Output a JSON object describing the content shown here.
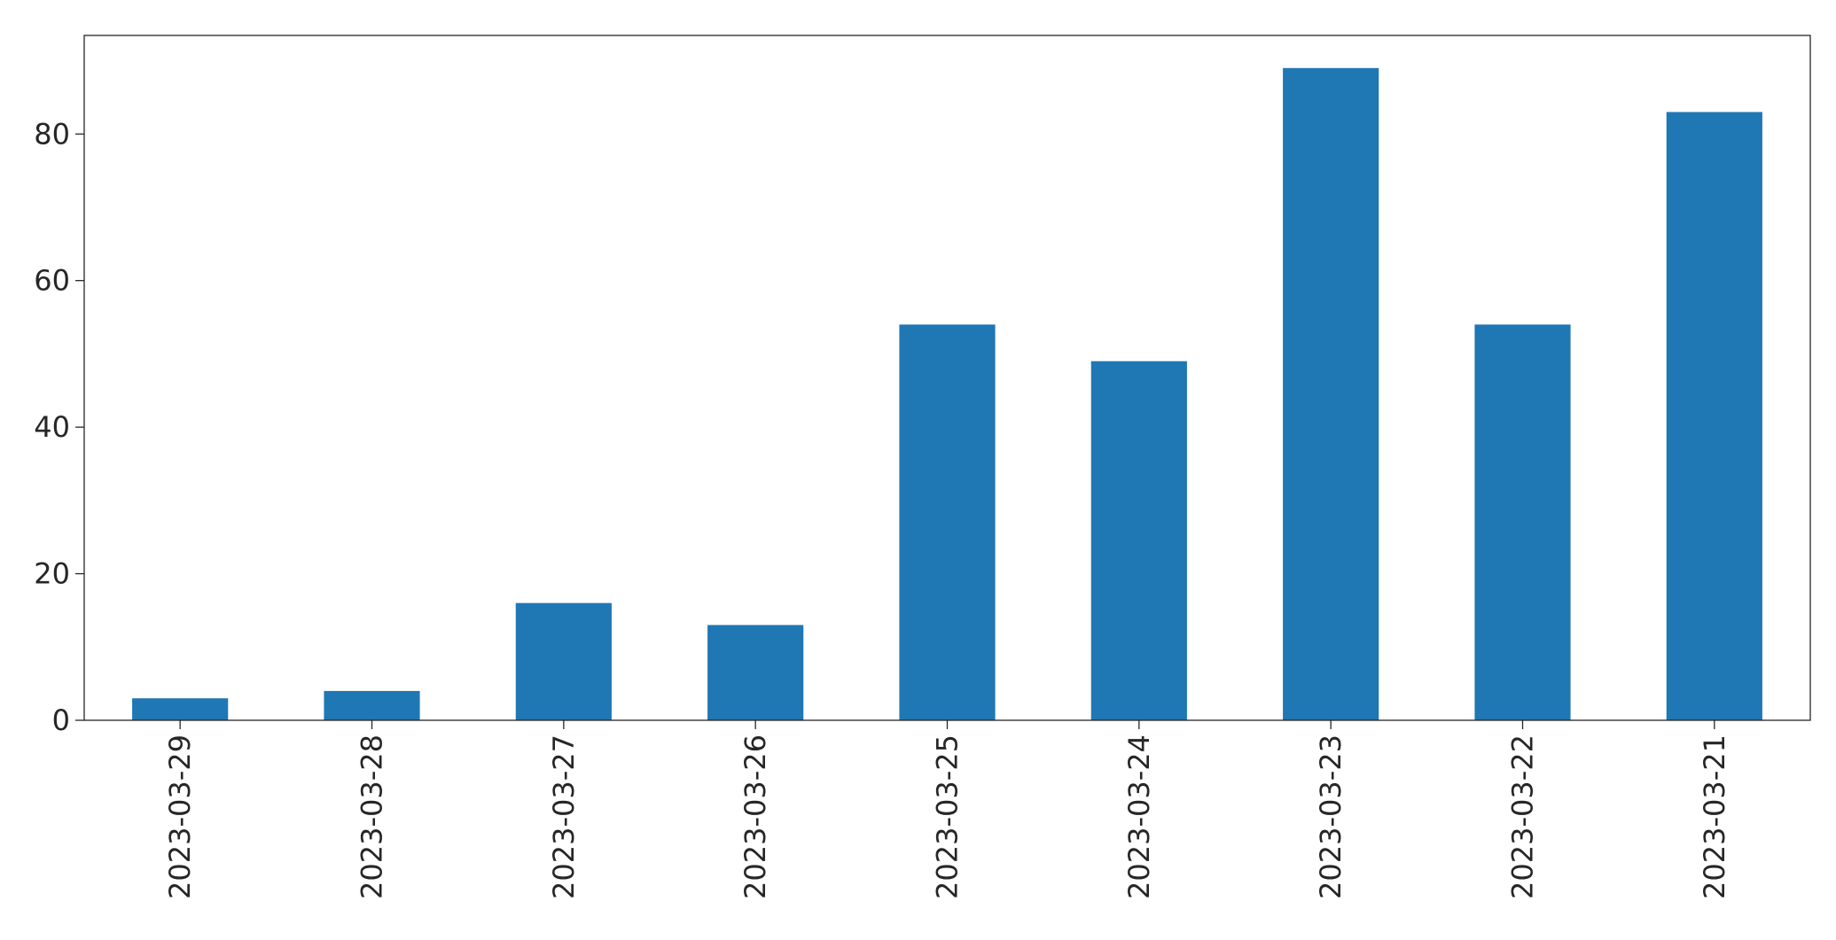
{
  "chart_data": {
    "type": "bar",
    "title": "",
    "xlabel": "",
    "ylabel": "",
    "categories": [
      "2023-03-29",
      "2023-03-28",
      "2023-03-27",
      "2023-03-26",
      "2023-03-25",
      "2023-03-24",
      "2023-03-23",
      "2023-03-22",
      "2023-03-21"
    ],
    "values": [
      3,
      4,
      16,
      13,
      54,
      49,
      89,
      54,
      83
    ],
    "ylim": [
      0,
      93.45
    ],
    "yticks": [
      0,
      20,
      40,
      60,
      80
    ],
    "grid": false,
    "legend": "none",
    "bar_color": "#1f77b4",
    "x_tick_rotation": "vertical"
  }
}
